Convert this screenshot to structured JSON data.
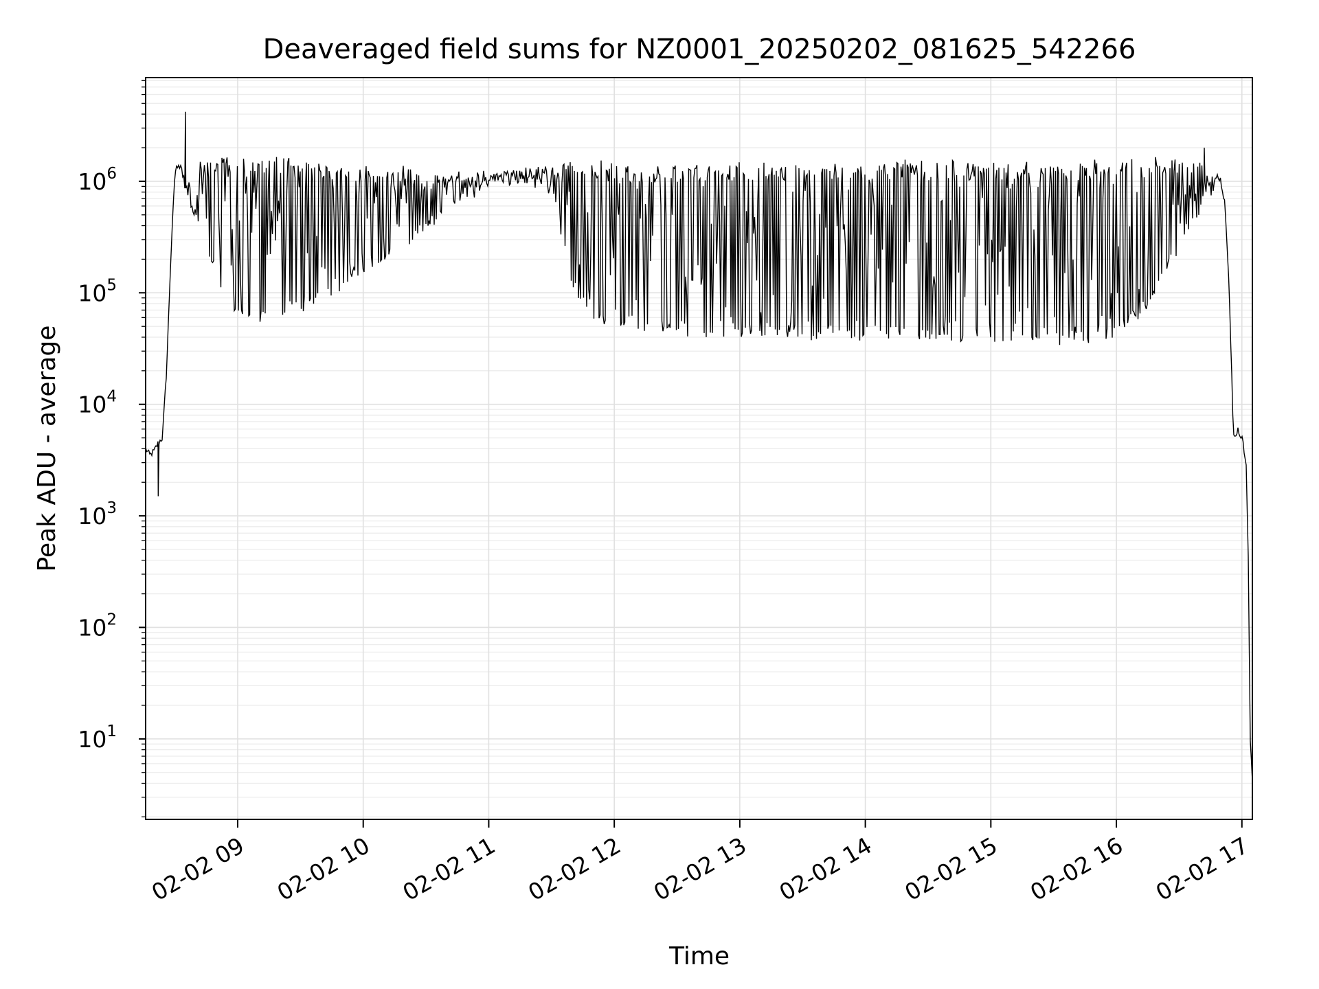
{
  "chart_data": {
    "type": "line",
    "title": "Deaveraged field sums for NZ0001_20250202_081625_542266",
    "xlabel": "Time",
    "ylabel": "Peak ADU - average",
    "yscale": "log",
    "grid": true,
    "line_color": "#000000",
    "x_ticks": [
      {
        "label": "02-02 09",
        "value": "2025-02-02T09:00"
      },
      {
        "label": "02-02 10",
        "value": "2025-02-02T10:00"
      },
      {
        "label": "02-02 11",
        "value": "2025-02-02T11:00"
      },
      {
        "label": "02-02 12",
        "value": "2025-02-02T12:00"
      },
      {
        "label": "02-02 13",
        "value": "2025-02-02T13:00"
      },
      {
        "label": "02-02 14",
        "value": "2025-02-02T14:00"
      },
      {
        "label": "02-02 15",
        "value": "2025-02-02T15:00"
      },
      {
        "label": "02-02 16",
        "value": "2025-02-02T16:00"
      },
      {
        "label": "02-02 17",
        "value": "2025-02-02T17:00"
      }
    ],
    "y_ticks": [
      {
        "base": "10",
        "exp": "1",
        "value": 10
      },
      {
        "base": "10",
        "exp": "2",
        "value": 100
      },
      {
        "base": "10",
        "exp": "3",
        "value": 1000
      },
      {
        "base": "10",
        "exp": "4",
        "value": 10000
      },
      {
        "base": "10",
        "exp": "5",
        "value": 100000
      },
      {
        "base": "10",
        "exp": "6",
        "value": 1000000
      }
    ],
    "xlim": [
      "2025-02-02T08:16",
      "2025-02-02T17:05"
    ],
    "ylim": [
      1.9,
      8500000
    ],
    "series": [
      {
        "x": [
          "2025-02-02T08:16",
          "2025-02-02T08:18",
          "2025-02-02T08:20",
          "2025-02-02T08:22",
          "2025-02-02T08:24",
          "2025-02-02T08:26",
          "2025-02-02T08:28",
          "2025-02-02T08:30",
          "2025-02-02T08:32",
          "2025-02-02T08:34",
          "2025-02-02T08:36",
          "2025-02-02T08:38",
          "2025-02-02T08:40",
          "2025-02-02T08:42",
          "2025-02-02T08:45",
          "2025-02-02T08:50",
          "2025-02-02T08:55",
          "2025-02-02T09:00",
          "2025-02-02T09:10",
          "2025-02-02T09:20",
          "2025-02-02T09:30",
          "2025-02-02T09:40",
          "2025-02-02T09:50",
          "2025-02-02T10:00",
          "2025-02-02T10:10",
          "2025-02-02T10:20",
          "2025-02-02T10:30",
          "2025-02-02T10:40",
          "2025-02-02T10:50",
          "2025-02-02T11:00",
          "2025-02-02T11:10",
          "2025-02-02T11:20",
          "2025-02-02T11:30",
          "2025-02-02T11:40",
          "2025-02-02T11:50",
          "2025-02-02T12:00",
          "2025-02-02T12:15",
          "2025-02-02T12:30",
          "2025-02-02T12:45",
          "2025-02-02T13:00",
          "2025-02-02T13:15",
          "2025-02-02T13:30",
          "2025-02-02T13:45",
          "2025-02-02T14:00",
          "2025-02-02T14:15",
          "2025-02-02T14:30",
          "2025-02-02T14:45",
          "2025-02-02T15:00",
          "2025-02-02T15:15",
          "2025-02-02T15:30",
          "2025-02-02T15:45",
          "2025-02-02T16:00",
          "2025-02-02T16:10",
          "2025-02-02T16:20",
          "2025-02-02T16:30",
          "2025-02-02T16:35",
          "2025-02-02T16:40",
          "2025-02-02T16:44",
          "2025-02-02T16:48",
          "2025-02-02T16:50",
          "2025-02-02T16:52",
          "2025-02-02T16:54",
          "2025-02-02T16:56",
          "2025-02-02T16:58",
          "2025-02-02T17:00",
          "2025-02-02T17:02",
          "2025-02-02T17:03",
          "2025-02-02T17:04",
          "2025-02-02T17:05"
        ],
        "baseline": [
          4000,
          3500,
          3800,
          4500,
          5000,
          20000,
          200000,
          1200000,
          1500000,
          900000,
          700000,
          500000,
          400000,
          350000,
          200000,
          120000,
          80000,
          60000,
          55000,
          60000,
          70000,
          80000,
          100000,
          140000,
          180000,
          250000,
          350000,
          500000,
          700000,
          900000,
          1000000,
          900000,
          700000,
          100000,
          60000,
          50000,
          45000,
          42000,
          40000,
          39000,
          40000,
          40000,
          39000,
          38000,
          37000,
          36000,
          35000,
          35000,
          35000,
          35000,
          36000,
          40000,
          60000,
          100000,
          250000,
          350000,
          500000,
          900000,
          1100000,
          1000000,
          600000,
          100000,
          5000,
          6000,
          5000,
          3000,
          500,
          10,
          4
        ],
        "peak": [
          4000,
          3500,
          3800,
          4500,
          5000,
          20000,
          200000,
          1200000,
          1500000,
          1400000,
          1000000,
          1000000,
          1200000,
          1500000,
          1600000,
          1600000,
          1600000,
          1600000,
          1600000,
          1600000,
          1500000,
          1500000,
          1400000,
          1400000,
          1300000,
          1300000,
          1200000,
          1200000,
          1200000,
          1200000,
          1300000,
          1400000,
          1500000,
          1500000,
          1500000,
          1400000,
          1400000,
          1400000,
          1400000,
          1400000,
          1400000,
          1400000,
          1400000,
          1400000,
          1500000,
          1500000,
          1500000,
          1500000,
          1500000,
          1500000,
          1500000,
          1600000,
          1600000,
          1600000,
          1600000,
          1600000,
          1500000,
          1100000,
          1100000,
          1000000,
          600000,
          100000,
          5000,
          6000,
          5000,
          3000,
          500,
          10,
          4
        ]
      }
    ]
  }
}
